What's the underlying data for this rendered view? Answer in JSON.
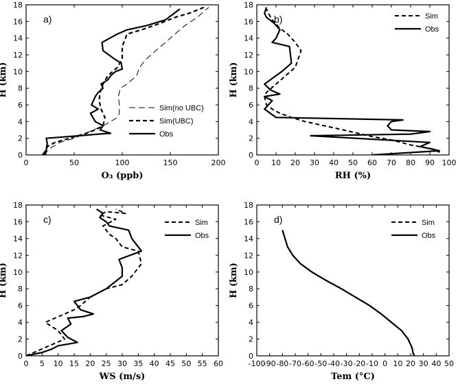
{
  "chart_data": [
    {
      "panel": "a)",
      "type": "line",
      "xlabel": "O₃ (ppb)",
      "ylabel": "H (km)",
      "xlim": [
        0,
        200
      ],
      "ylim": [
        0,
        18
      ],
      "xticks": [
        "0",
        "50",
        "100",
        "150",
        "200"
      ],
      "yticks": [
        "0",
        "2",
        "4",
        "6",
        "8",
        "10",
        "12",
        "14",
        "16",
        "18"
      ],
      "legend_position": "bottom-right",
      "series": [
        {
          "name": "Sim(no UBC)",
          "style": "dashed-thin",
          "x": [
            18,
            25,
            35,
            50,
            60,
            70,
            80,
            88,
            95,
            97,
            97,
            96,
            98,
            105,
            115,
            118,
            125,
            135,
            145,
            155,
            165,
            178,
            190
          ],
          "y": [
            0,
            0.8,
            1.5,
            2,
            2.5,
            3,
            3.5,
            4,
            4.5,
            5,
            6,
            7,
            8,
            8.5,
            9.5,
            10.5,
            11.5,
            12.5,
            13.5,
            14.5,
            15.5,
            16.5,
            17.7
          ]
        },
        {
          "name": "Sim(UBC)",
          "style": "dashed-thick",
          "x": [
            20,
            22,
            30,
            45,
            60,
            72,
            80,
            82,
            78,
            76,
            77,
            80,
            85,
            95,
            100,
            100,
            105,
            120,
            140,
            155,
            170,
            185
          ],
          "y": [
            0,
            1,
            1.5,
            2,
            2.5,
            3,
            3.5,
            4.5,
            5.5,
            6.5,
            7.5,
            8.5,
            9.5,
            10.5,
            11.5,
            13,
            14.5,
            15,
            15.8,
            16.5,
            17,
            17.7
          ]
        },
        {
          "name": "Obs",
          "style": "solid",
          "x": [
            17,
            21,
            22,
            21,
            55,
            75,
            88,
            77,
            80,
            72,
            67,
            75,
            68,
            72,
            75,
            80,
            78,
            85,
            88,
            93,
            100,
            99,
            92,
            80,
            79,
            95,
            105,
            125,
            145,
            160
          ],
          "y": [
            0,
            0.6,
            1.4,
            2,
            2.3,
            2.5,
            2.6,
            3,
            3.5,
            4,
            5,
            5.5,
            6,
            7,
            7.5,
            8,
            8.5,
            9,
            9.5,
            10,
            10.3,
            11,
            11.5,
            12.5,
            13.5,
            14.5,
            15,
            15.5,
            16.2,
            17.5
          ]
        }
      ]
    },
    {
      "panel": "b)",
      "type": "line",
      "xlabel": "RH (%)",
      "ylabel": "H (km)",
      "xlim": [
        0,
        100
      ],
      "ylim": [
        0,
        18
      ],
      "xticks": [
        "0",
        "10",
        "20",
        "30",
        "40",
        "50",
        "60",
        "70",
        "80",
        "90",
        "100"
      ],
      "yticks": [
        "0",
        "2",
        "4",
        "6",
        "8",
        "10",
        "12",
        "14",
        "16",
        "18"
      ],
      "legend_position": "top-right",
      "series": [
        {
          "name": "Sim",
          "style": "dashed",
          "x": [
            95,
            92,
            80,
            70,
            60,
            45,
            35,
            25,
            18,
            12,
            8,
            5,
            4,
            5,
            10,
            15,
            20,
            23,
            20,
            18,
            16,
            12,
            10,
            8,
            6,
            5
          ],
          "y": [
            0.3,
            0.7,
            1.2,
            1.8,
            2.2,
            3,
            3.5,
            4,
            4.5,
            5,
            5.5,
            6,
            7,
            7.5,
            8.5,
            9.5,
            10.5,
            12.5,
            13.5,
            14,
            14.5,
            15.2,
            15.7,
            16.2,
            17,
            17.5
          ]
        },
        {
          "name": "Obs",
          "style": "solid",
          "x": [
            60,
            95,
            85,
            90,
            28,
            80,
            90,
            70,
            68,
            70,
            76,
            10,
            4,
            8,
            4,
            12,
            7,
            4,
            10,
            13,
            18,
            17,
            8,
            10,
            12,
            9,
            5,
            4,
            5
          ],
          "y": [
            0,
            0.5,
            1,
            1.5,
            2.3,
            2.5,
            2.8,
            3,
            3.5,
            4,
            4.2,
            4.5,
            5.5,
            6.5,
            7,
            7.3,
            7.8,
            8.5,
            9.5,
            10,
            11,
            13,
            13.5,
            14,
            15,
            15.8,
            16.5,
            17,
            17.7
          ]
        }
      ]
    },
    {
      "panel": "c)",
      "type": "line",
      "xlabel": "WS (m/s)",
      "ylabel": "H (km)",
      "xlim": [
        0,
        60
      ],
      "ylim": [
        0,
        18
      ],
      "xticks": [
        "0",
        "5",
        "10",
        "15",
        "20",
        "25",
        "30",
        "35",
        "40",
        "45",
        "50",
        "55",
        "60"
      ],
      "yticks": [
        "0",
        "2",
        "4",
        "6",
        "8",
        "10",
        "12",
        "14",
        "16",
        "18"
      ],
      "legend_position": "top-right",
      "series": [
        {
          "name": "Sim",
          "style": "dashed",
          "x": [
            0,
            3,
            6,
            9,
            12,
            11,
            10,
            8,
            6,
            9,
            12,
            15,
            17,
            20,
            25,
            30,
            33,
            36,
            35,
            30,
            28,
            26,
            25,
            24,
            28,
            23,
            25,
            31,
            28
          ],
          "y": [
            0,
            0.5,
            1,
            1.5,
            2,
            2.5,
            3,
            3.5,
            4,
            4.5,
            5,
            5.5,
            6,
            7,
            8,
            8.5,
            9.5,
            11,
            12.5,
            13,
            14,
            14.5,
            15,
            15.5,
            16.3,
            16.8,
            17.2,
            17,
            17.5
          ]
        },
        {
          "name": "Obs",
          "style": "solid",
          "x": [
            0,
            5,
            8,
            10,
            13,
            16,
            13,
            11,
            14,
            13,
            18,
            21,
            17,
            15,
            20,
            25,
            30,
            30,
            29,
            36,
            33,
            32,
            26,
            25,
            23,
            24,
            22
          ],
          "y": [
            0,
            0.4,
            0.8,
            1.2,
            1.4,
            1.6,
            2.2,
            3,
            3.8,
            4.5,
            4.7,
            5,
            5.5,
            6.5,
            7,
            8,
            9.5,
            10.5,
            11.5,
            12.5,
            14,
            15,
            15.5,
            16,
            16.5,
            17,
            17.5
          ]
        }
      ]
    },
    {
      "panel": "d)",
      "type": "line",
      "xlabel": "Tem (°C)",
      "ylabel": "H (km)",
      "xlim": [
        -100,
        50
      ],
      "ylim": [
        0,
        18
      ],
      "xticks": [
        "-100",
        "-90",
        "-80",
        "-70",
        "-60",
        "-50",
        "-40",
        "-30",
        "-20",
        "-10",
        "0",
        "10",
        "20",
        "30",
        "40",
        "50"
      ],
      "yticks": [
        "0",
        "2",
        "4",
        "6",
        "8",
        "10",
        "12",
        "14",
        "16",
        "18"
      ],
      "legend_position": "top-right",
      "series": [
        {
          "name": "Sim",
          "style": "dashed",
          "x": [
            23,
            22,
            21,
            18,
            13,
            5,
            -3,
            -12,
            -23,
            -34,
            -46,
            -57,
            -66,
            -72,
            -76,
            -78,
            -80
          ],
          "y": [
            0,
            0.3,
            1,
            2,
            3,
            4,
            5,
            6,
            7,
            8,
            9,
            10,
            11,
            12,
            13,
            14,
            15
          ]
        },
        {
          "name": "Obs",
          "style": "solid",
          "x": [
            23,
            22,
            21,
            18,
            13,
            5,
            -3,
            -12,
            -23,
            -34,
            -46,
            -57,
            -66,
            -72,
            -76,
            -78,
            -80
          ],
          "y": [
            0,
            0.3,
            1,
            2,
            3,
            4,
            5,
            6,
            7,
            8,
            9,
            10,
            11,
            12,
            13,
            14,
            15
          ]
        }
      ]
    }
  ]
}
